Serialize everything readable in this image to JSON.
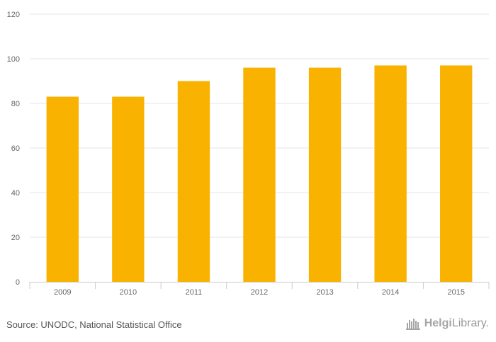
{
  "chart_data": {
    "type": "bar",
    "categories": [
      "2009",
      "2010",
      "2011",
      "2012",
      "2013",
      "2014",
      "2015"
    ],
    "values": [
      83,
      83,
      90,
      96,
      96,
      97,
      97
    ],
    "title": "",
    "xlabel": "",
    "ylabel": "",
    "ylim": [
      0,
      120
    ],
    "yticks": [
      "0",
      "20",
      "40",
      "60",
      "80",
      "100",
      "120"
    ],
    "grid": true,
    "legend": "none",
    "colors": {
      "bar": "#F9B200",
      "grid": "#e6e6e6",
      "axis": "#cccccc"
    }
  },
  "footer": {
    "source": "Source: UNODC, National Statistical Office",
    "brand_part1": "Helgi",
    "brand_part2": "Library."
  }
}
